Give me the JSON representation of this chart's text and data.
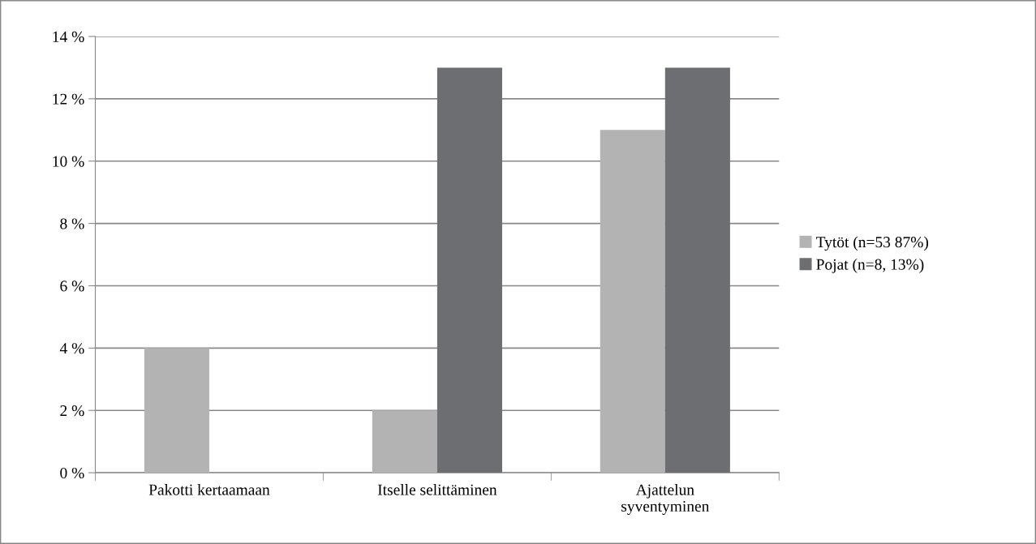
{
  "chart_data": {
    "type": "bar",
    "categories": [
      "Pakotti kertaamaan",
      "Itselle selittäminen",
      "Ajattelun\nsyventyminen"
    ],
    "series": [
      {
        "name": "Tytöt (n=53 87%)",
        "color": "#b3b3b4",
        "values": [
          4,
          2,
          11
        ]
      },
      {
        "name": "Pojat (n=8, 13%)",
        "color": "#6d6e71",
        "values": [
          0,
          13,
          13
        ]
      }
    ],
    "ylim": [
      0,
      14
    ],
    "yticks": [
      {
        "value": 0,
        "label": "0 %"
      },
      {
        "value": 2,
        "label": "2 %"
      },
      {
        "value": 4,
        "label": "4 %"
      },
      {
        "value": 6,
        "label": "6 %"
      },
      {
        "value": 8,
        "label": "8 %"
      },
      {
        "value": 10,
        "label": "10 %"
      },
      {
        "value": 12,
        "label": "12 %"
      },
      {
        "value": 14,
        "label": "14 %"
      }
    ],
    "grid": "y",
    "legend": "right"
  }
}
